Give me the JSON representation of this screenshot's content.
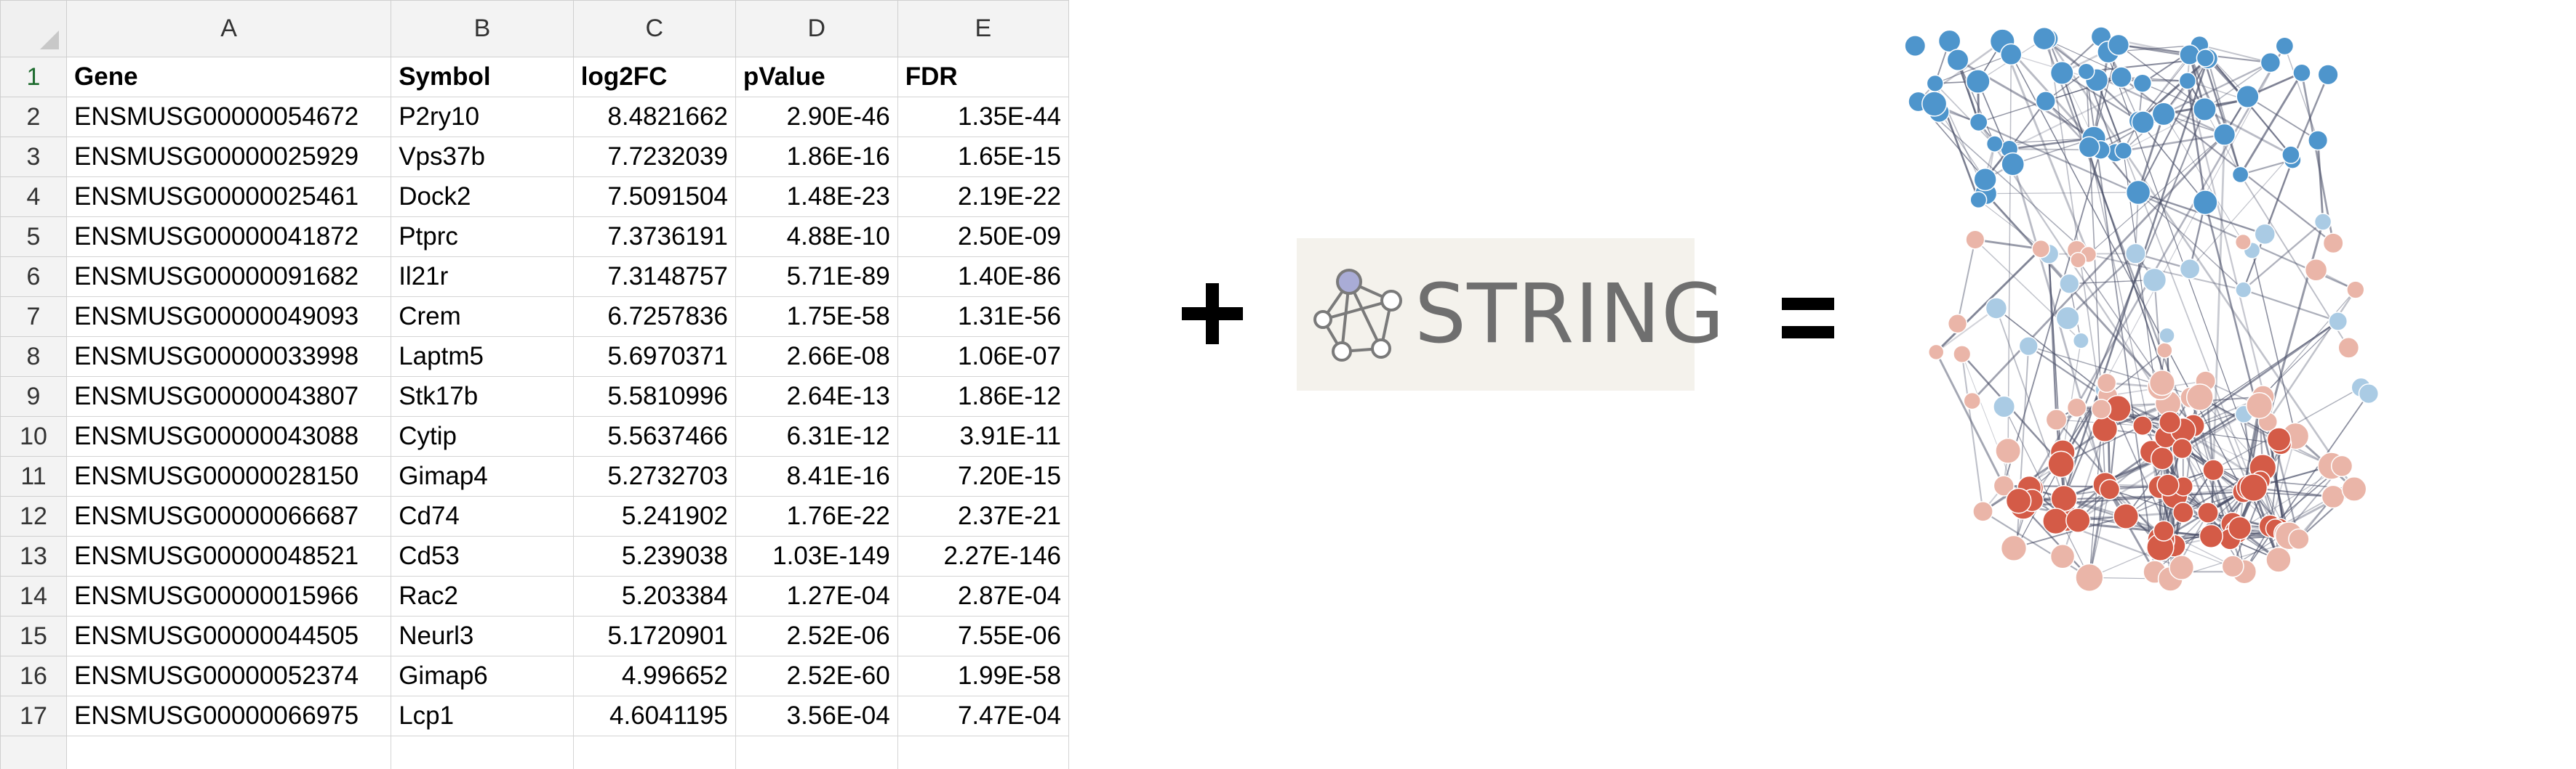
{
  "spreadsheet": {
    "columns": [
      "A",
      "B",
      "C",
      "D",
      "E"
    ],
    "header": [
      "Gene",
      "Symbol",
      "log2FC",
      "pValue",
      "FDR"
    ],
    "rows": [
      [
        "ENSMUSG00000054672",
        "P2ry10",
        "8.4821662",
        "2.90E-46",
        "1.35E-44"
      ],
      [
        "ENSMUSG00000025929",
        "Vps37b",
        "7.7232039",
        "1.86E-16",
        "1.65E-15"
      ],
      [
        "ENSMUSG00000025461",
        "Dock2",
        "7.5091504",
        "1.48E-23",
        "2.19E-22"
      ],
      [
        "ENSMUSG00000041872",
        "Ptprc",
        "7.3736191",
        "4.88E-10",
        "2.50E-09"
      ],
      [
        "ENSMUSG00000091682",
        "Il21r",
        "7.3148757",
        "5.71E-89",
        "1.40E-86"
      ],
      [
        "ENSMUSG00000049093",
        "Crem",
        "6.7257836",
        "1.75E-58",
        "1.31E-56"
      ],
      [
        "ENSMUSG00000033998",
        "Laptm5",
        "5.6970371",
        "2.66E-08",
        "1.06E-07"
      ],
      [
        "ENSMUSG00000043807",
        "Stk17b",
        "5.5810996",
        "2.64E-13",
        "1.86E-12"
      ],
      [
        "ENSMUSG00000043088",
        "Cytip",
        "5.5637466",
        "6.31E-12",
        "3.91E-11"
      ],
      [
        "ENSMUSG00000028150",
        "Gimap4",
        "5.2732703",
        "8.41E-16",
        "7.20E-15"
      ],
      [
        "ENSMUSG00000066687",
        "Cd74",
        "5.241902",
        "1.76E-22",
        "2.37E-21"
      ],
      [
        "ENSMUSG00000048521",
        "Cd53",
        "5.239038",
        "1.03E-149",
        "2.27E-146"
      ],
      [
        "ENSMUSG00000015966",
        "Rac2",
        "5.203384",
        "1.27E-04",
        "2.87E-04"
      ],
      [
        "ENSMUSG00000044505",
        "Neurl3",
        "5.1720901",
        "2.52E-06",
        "7.55E-06"
      ],
      [
        "ENSMUSG00000052374",
        "Gimap6",
        "4.996652",
        "2.52E-60",
        "1.99E-58"
      ],
      [
        "ENSMUSG00000066975",
        "Lcp1",
        "4.6041195",
        "3.56E-04",
        "7.47E-04"
      ]
    ]
  },
  "operators": {
    "plus": "+",
    "equals": "="
  },
  "logo": {
    "text": "STRING",
    "icon": "string-network-logo-icon"
  },
  "network": {
    "icon": "protein-interaction-network",
    "colors": {
      "up": "#d9604b",
      "down": "#5a9fd0",
      "edge": "#4a4f68"
    }
  }
}
